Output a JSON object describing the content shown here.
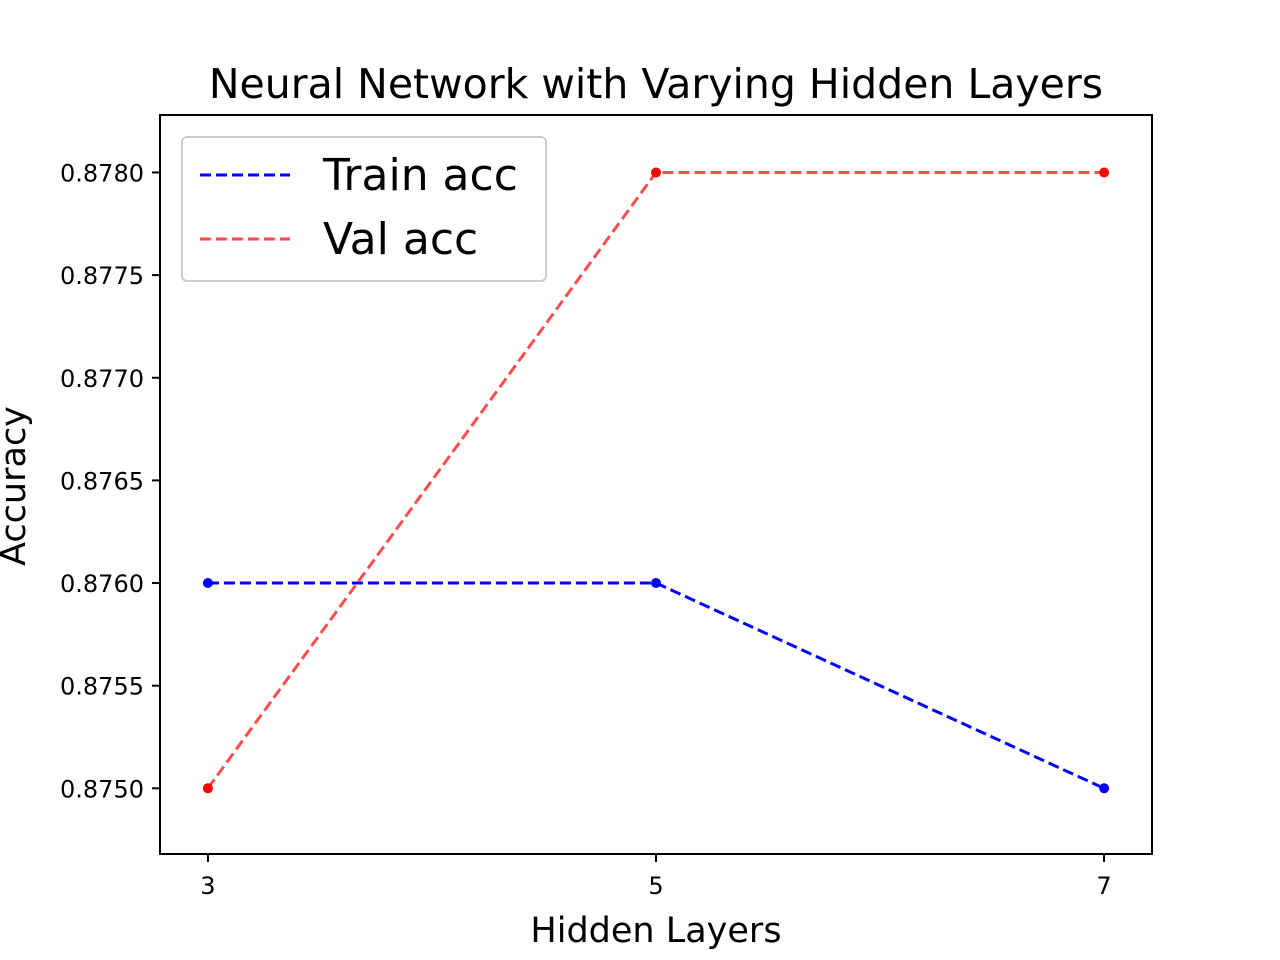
{
  "chart_data": {
    "type": "line",
    "title": "Neural Network with Varying Hidden Layers",
    "xlabel": "Hidden Layers",
    "ylabel": "Accuracy",
    "x": [
      3,
      5,
      7
    ],
    "xticks": [
      "3",
      "5",
      "7"
    ],
    "xlim": [
      2.786,
      7.214
    ],
    "ylim": [
      0.87468,
      0.87828
    ],
    "yticks": [
      0.875,
      0.8755,
      0.876,
      0.8765,
      0.877,
      0.8775,
      0.878
    ],
    "ytick_labels": [
      "0.8750",
      "0.8755",
      "0.8760",
      "0.8765",
      "0.8770",
      "0.8775",
      "0.8780"
    ],
    "grid": false,
    "legend_position": "top-left",
    "series": [
      {
        "name": "Train acc",
        "values": [
          0.876,
          0.876,
          0.875
        ],
        "color": "#0000ff",
        "line_style": "dashed",
        "marker": "dot"
      },
      {
        "name": "Val acc",
        "values": [
          0.875,
          0.878,
          0.878
        ],
        "color": "#ff4d4d",
        "marker_color": "#ff0000",
        "line_style": "dashed",
        "marker": "dot"
      }
    ]
  }
}
